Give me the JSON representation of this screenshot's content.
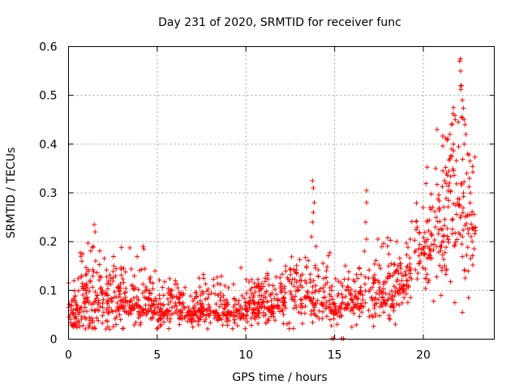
{
  "chart_data": {
    "type": "scatter",
    "title": "Day 231 of 2020, SRMTID for receiver func",
    "xlabel": "GPS time / hours",
    "ylabel": "SRMTID / TECUs",
    "xlim": [
      0,
      24
    ],
    "ylim": [
      0,
      0.6
    ],
    "xticks": [
      0,
      5,
      10,
      15,
      20
    ],
    "yticks": [
      0,
      0.1,
      0.2,
      0.3,
      0.4,
      0.5,
      0.6
    ],
    "grid": true,
    "marker": "plus",
    "series_color": "#ff0000",
    "legend": "none",
    "profile": [
      [
        0.0,
        0.05,
        0.02
      ],
      [
        0.5,
        0.065,
        0.03
      ],
      [
        1.0,
        0.08,
        0.04
      ],
      [
        1.5,
        0.085,
        0.045
      ],
      [
        2.0,
        0.075,
        0.035
      ],
      [
        2.5,
        0.09,
        0.04
      ],
      [
        3.0,
        0.085,
        0.035
      ],
      [
        3.5,
        0.075,
        0.03
      ],
      [
        4.0,
        0.07,
        0.03
      ],
      [
        4.5,
        0.065,
        0.025
      ],
      [
        5.0,
        0.06,
        0.025
      ],
      [
        5.5,
        0.06,
        0.025
      ],
      [
        6.0,
        0.065,
        0.025
      ],
      [
        6.5,
        0.06,
        0.02
      ],
      [
        7.0,
        0.06,
        0.02
      ],
      [
        7.5,
        0.06,
        0.02
      ],
      [
        8.0,
        0.062,
        0.02
      ],
      [
        8.5,
        0.06,
        0.02
      ],
      [
        9.0,
        0.06,
        0.02
      ],
      [
        9.5,
        0.062,
        0.02
      ],
      [
        10.0,
        0.065,
        0.02
      ],
      [
        10.5,
        0.075,
        0.025
      ],
      [
        11.0,
        0.07,
        0.025
      ],
      [
        11.5,
        0.07,
        0.025
      ],
      [
        12.0,
        0.08,
        0.025
      ],
      [
        12.5,
        0.085,
        0.03
      ],
      [
        13.0,
        0.09,
        0.03
      ],
      [
        13.5,
        0.095,
        0.03
      ],
      [
        14.0,
        0.085,
        0.03
      ],
      [
        14.5,
        0.08,
        0.03
      ],
      [
        15.0,
        0.055,
        0.02
      ],
      [
        15.5,
        0.06,
        0.025
      ],
      [
        16.0,
        0.07,
        0.025
      ],
      [
        16.5,
        0.08,
        0.03
      ],
      [
        17.0,
        0.08,
        0.03
      ],
      [
        17.5,
        0.09,
        0.035
      ],
      [
        18.0,
        0.095,
        0.035
      ],
      [
        18.5,
        0.1,
        0.035
      ],
      [
        19.0,
        0.12,
        0.035
      ],
      [
        19.5,
        0.15,
        0.045
      ],
      [
        20.0,
        0.19,
        0.05
      ],
      [
        20.5,
        0.2,
        0.06
      ],
      [
        21.0,
        0.22,
        0.07
      ],
      [
        21.5,
        0.25,
        0.08
      ],
      [
        22.0,
        0.27,
        0.09
      ],
      [
        22.5,
        0.25,
        0.08
      ],
      [
        22.9,
        0.23,
        0.06
      ]
    ],
    "spikes": [
      [
        0.7,
        0.17
      ],
      [
        0.75,
        0.16
      ],
      [
        0.8,
        0.175
      ],
      [
        1.45,
        0.235
      ],
      [
        1.5,
        0.22
      ],
      [
        1.4,
        0.19
      ],
      [
        4.2,
        0.19
      ],
      [
        4.25,
        0.185
      ],
      [
        13.75,
        0.325
      ],
      [
        13.8,
        0.31
      ],
      [
        13.85,
        0.28
      ],
      [
        13.8,
        0.26
      ],
      [
        13.75,
        0.24
      ],
      [
        13.7,
        0.21
      ],
      [
        16.8,
        0.305
      ],
      [
        16.8,
        0.28
      ],
      [
        16.75,
        0.24
      ],
      [
        16.8,
        0.205
      ],
      [
        18.5,
        0.2
      ],
      [
        20.7,
        0.35
      ],
      [
        21.1,
        0.345
      ],
      [
        21.3,
        0.34
      ],
      [
        21.5,
        0.37
      ],
      [
        21.6,
        0.39
      ],
      [
        21.7,
        0.4
      ],
      [
        21.5,
        0.42
      ],
      [
        21.6,
        0.44
      ],
      [
        21.7,
        0.475
      ],
      [
        21.8,
        0.45
      ],
      [
        22.05,
        0.57
      ],
      [
        22.1,
        0.575
      ],
      [
        22.1,
        0.55
      ],
      [
        22.15,
        0.52
      ],
      [
        22.2,
        0.49
      ],
      [
        22.3,
        0.45
      ],
      [
        22.35,
        0.44
      ],
      [
        22.4,
        0.42
      ],
      [
        22.3,
        0.4
      ],
      [
        22.5,
        0.38
      ],
      [
        22.45,
        0.34
      ],
      [
        22.6,
        0.33
      ],
      [
        22.2,
        0.055
      ],
      [
        21.0,
        0.09
      ],
      [
        22.55,
        0.085
      ]
    ],
    "zeros": [
      14.85,
      14.95,
      15.4,
      15.5
    ],
    "point_count": 1500
  }
}
